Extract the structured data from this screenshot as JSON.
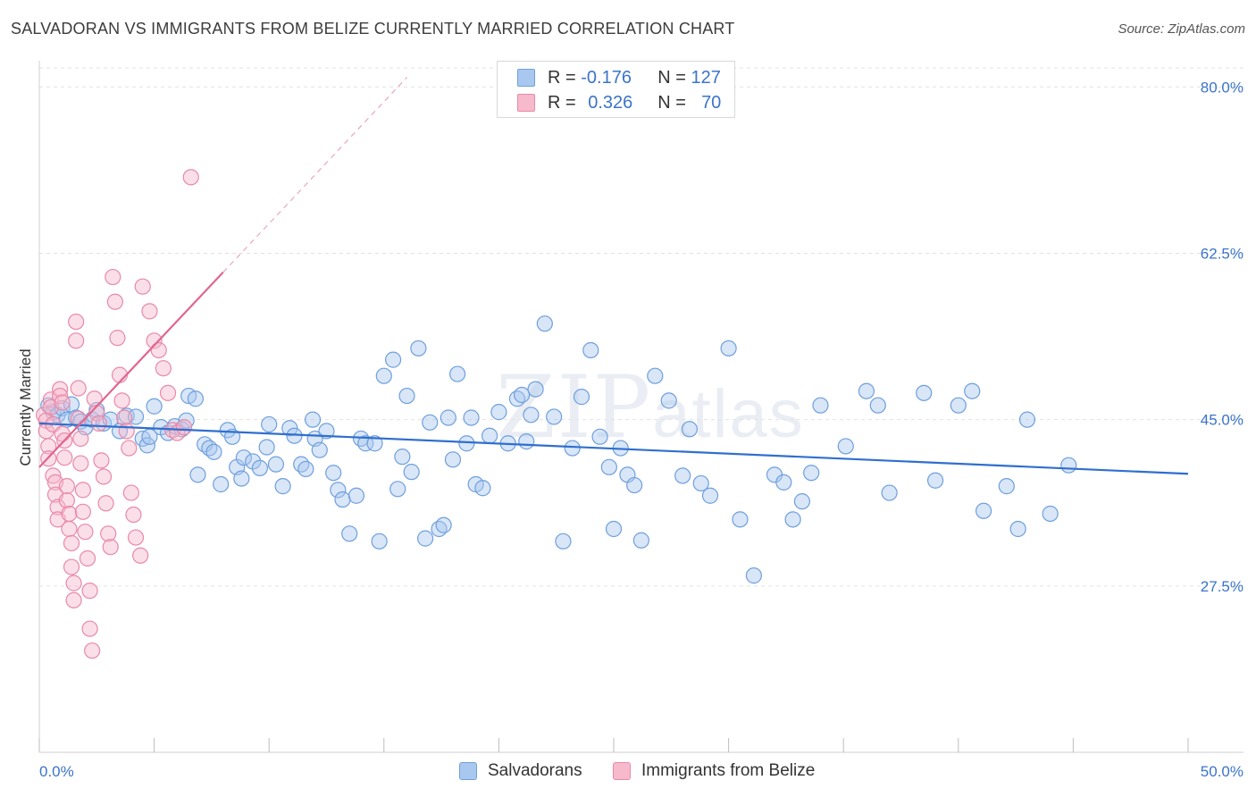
{
  "title": "SALVADORAN VS IMMIGRANTS FROM BELIZE CURRENTLY MARRIED CORRELATION CHART",
  "source": "Source: ZipAtlas.com",
  "watermark": {
    "zip": "ZIP",
    "atlas": "atlas"
  },
  "legend": {
    "rows": [
      {
        "r_label": "R =",
        "r_value": "-0.176",
        "n_label": "N =",
        "n_value": "127",
        "color": "#a9c8f0",
        "border": "#6f9fdc"
      },
      {
        "r_label": "R =",
        "r_value": "0.326",
        "n_label": "N =",
        "n_value": "70",
        "color": "#f7b9cc",
        "border": "#e889a8"
      }
    ]
  },
  "bottom_legend": [
    {
      "label": "Salvadorans",
      "color": "#a9c8f0",
      "border": "#6f9fdc"
    },
    {
      "label": "Immigrants from Belize",
      "color": "#f7b9cc",
      "border": "#e889a8"
    }
  ],
  "chart_data": {
    "type": "scatter",
    "title": "SALVADORAN VS IMMIGRANTS FROM BELIZE CURRENTLY MARRIED CORRELATION CHART",
    "xlabel": "",
    "ylabel": "Currently Married",
    "xlim": [
      0,
      50
    ],
    "ylim": [
      10,
      82
    ],
    "x_tick_labels": [
      "0.0%",
      "50.0%"
    ],
    "y_ticks": [
      27.5,
      45.0,
      62.5,
      80.0
    ],
    "y_tick_labels": [
      "27.5%",
      "45.0%",
      "62.5%",
      "80.0%"
    ],
    "grid": true,
    "series": [
      {
        "name": "Salvadorans",
        "color": "#6f9fdc",
        "fill": "#a9c8f0",
        "trend": {
          "x": [
            0,
            50
          ],
          "y": [
            44.6,
            39.3
          ]
        },
        "points": [
          [
            0.4,
            46.5
          ],
          [
            0.6,
            45.8
          ],
          [
            0.8,
            45.5
          ],
          [
            1.0,
            46.2
          ],
          [
            1.2,
            45.0
          ],
          [
            1.4,
            46.6
          ],
          [
            1.6,
            45.2
          ],
          [
            1.8,
            44.8
          ],
          [
            2.0,
            44.2
          ],
          [
            2.3,
            45.0
          ],
          [
            2.5,
            46.0
          ],
          [
            2.8,
            44.6
          ],
          [
            3.1,
            45.0
          ],
          [
            3.5,
            43.8
          ],
          [
            3.8,
            45.4
          ],
          [
            4.2,
            45.3
          ],
          [
            4.5,
            43.0
          ],
          [
            4.7,
            42.3
          ],
          [
            4.8,
            43.2
          ],
          [
            5.0,
            46.4
          ],
          [
            5.3,
            44.2
          ],
          [
            5.6,
            43.6
          ],
          [
            5.9,
            44.3
          ],
          [
            6.2,
            44.0
          ],
          [
            6.4,
            44.9
          ],
          [
            6.5,
            47.5
          ],
          [
            6.8,
            47.2
          ],
          [
            6.9,
            39.2
          ],
          [
            7.2,
            42.4
          ],
          [
            7.4,
            42.0
          ],
          [
            7.6,
            41.6
          ],
          [
            7.9,
            38.2
          ],
          [
            8.2,
            43.9
          ],
          [
            8.4,
            43.2
          ],
          [
            8.6,
            40.0
          ],
          [
            8.8,
            38.8
          ],
          [
            8.9,
            41.0
          ],
          [
            9.3,
            40.6
          ],
          [
            9.6,
            39.9
          ],
          [
            9.9,
            42.1
          ],
          [
            10.0,
            44.5
          ],
          [
            10.3,
            40.3
          ],
          [
            10.6,
            38.0
          ],
          [
            10.9,
            44.1
          ],
          [
            11.1,
            43.3
          ],
          [
            11.4,
            40.3
          ],
          [
            11.6,
            39.8
          ],
          [
            11.9,
            45.0
          ],
          [
            12.0,
            43.0
          ],
          [
            12.2,
            41.8
          ],
          [
            12.5,
            43.8
          ],
          [
            12.8,
            39.4
          ],
          [
            13.0,
            37.6
          ],
          [
            13.2,
            36.6
          ],
          [
            13.5,
            33.0
          ],
          [
            13.8,
            37.0
          ],
          [
            14.0,
            43.0
          ],
          [
            14.2,
            42.5
          ],
          [
            14.6,
            42.5
          ],
          [
            14.8,
            32.2
          ],
          [
            15.0,
            49.6
          ],
          [
            15.4,
            51.3
          ],
          [
            15.6,
            37.7
          ],
          [
            15.8,
            41.1
          ],
          [
            16.0,
            47.5
          ],
          [
            16.2,
            39.5
          ],
          [
            16.5,
            52.5
          ],
          [
            16.8,
            32.5
          ],
          [
            17.0,
            44.7
          ],
          [
            17.4,
            33.5
          ],
          [
            17.6,
            33.9
          ],
          [
            17.8,
            45.2
          ],
          [
            18.0,
            40.8
          ],
          [
            18.2,
            49.8
          ],
          [
            18.6,
            42.5
          ],
          [
            18.8,
            45.2
          ],
          [
            19.0,
            38.2
          ],
          [
            19.3,
            37.8
          ],
          [
            19.6,
            43.3
          ],
          [
            20.0,
            45.8
          ],
          [
            20.4,
            42.5
          ],
          [
            20.8,
            47.2
          ],
          [
            21.0,
            47.6
          ],
          [
            21.2,
            42.7
          ],
          [
            21.4,
            45.5
          ],
          [
            21.6,
            48.2
          ],
          [
            22.0,
            55.1
          ],
          [
            22.4,
            45.3
          ],
          [
            22.8,
            32.2
          ],
          [
            23.2,
            42.0
          ],
          [
            23.6,
            47.4
          ],
          [
            24.0,
            52.3
          ],
          [
            24.4,
            43.2
          ],
          [
            24.8,
            40.0
          ],
          [
            25.0,
            33.5
          ],
          [
            25.3,
            42.0
          ],
          [
            25.6,
            39.2
          ],
          [
            25.9,
            38.1
          ],
          [
            26.2,
            32.3
          ],
          [
            26.8,
            49.6
          ],
          [
            27.4,
            47.0
          ],
          [
            28.0,
            39.1
          ],
          [
            28.3,
            44.0
          ],
          [
            28.8,
            38.3
          ],
          [
            29.2,
            37.0
          ],
          [
            30.0,
            52.5
          ],
          [
            30.5,
            34.5
          ],
          [
            31.1,
            28.6
          ],
          [
            32.0,
            39.2
          ],
          [
            32.4,
            38.4
          ],
          [
            32.8,
            34.5
          ],
          [
            33.2,
            36.4
          ],
          [
            33.6,
            39.4
          ],
          [
            34.0,
            46.5
          ],
          [
            35.1,
            42.2
          ],
          [
            36.0,
            48.0
          ],
          [
            36.5,
            46.5
          ],
          [
            37.0,
            37.3
          ],
          [
            38.5,
            47.8
          ],
          [
            39.0,
            38.6
          ],
          [
            40.0,
            46.5
          ],
          [
            40.6,
            48.0
          ],
          [
            41.1,
            35.4
          ],
          [
            42.1,
            38.0
          ],
          [
            42.6,
            33.5
          ],
          [
            43.0,
            45.0
          ],
          [
            44.0,
            35.1
          ],
          [
            44.8,
            40.2
          ]
        ]
      },
      {
        "name": "Immigrants from Belize",
        "color": "#e889a8",
        "fill": "#f7b9cc",
        "trend": {
          "x": [
            0,
            8
          ],
          "y": [
            40.0,
            60.5
          ]
        },
        "trend_extension": {
          "x": [
            8,
            16
          ],
          "y": [
            60.5,
            81.0
          ]
        },
        "points": [
          [
            0.2,
            45.5
          ],
          [
            0.3,
            44.9
          ],
          [
            0.3,
            43.8
          ],
          [
            0.4,
            42.2
          ],
          [
            0.4,
            40.9
          ],
          [
            0.5,
            47.1
          ],
          [
            0.5,
            46.3
          ],
          [
            0.6,
            44.5
          ],
          [
            0.6,
            39.1
          ],
          [
            0.7,
            38.4
          ],
          [
            0.7,
            37.1
          ],
          [
            0.8,
            35.8
          ],
          [
            0.8,
            34.5
          ],
          [
            0.9,
            48.2
          ],
          [
            0.9,
            47.5
          ],
          [
            1.0,
            46.8
          ],
          [
            1.0,
            43.5
          ],
          [
            1.1,
            42.8
          ],
          [
            1.1,
            41.0
          ],
          [
            1.2,
            38.0
          ],
          [
            1.2,
            36.5
          ],
          [
            1.3,
            35.1
          ],
          [
            1.3,
            33.5
          ],
          [
            1.4,
            32.0
          ],
          [
            1.4,
            29.5
          ],
          [
            1.5,
            27.8
          ],
          [
            1.5,
            26.0
          ],
          [
            1.6,
            55.3
          ],
          [
            1.6,
            53.3
          ],
          [
            1.7,
            48.3
          ],
          [
            1.7,
            45.1
          ],
          [
            1.8,
            43.0
          ],
          [
            1.8,
            40.4
          ],
          [
            1.9,
            37.6
          ],
          [
            1.9,
            35.3
          ],
          [
            2.0,
            33.2
          ],
          [
            2.1,
            30.4
          ],
          [
            2.2,
            27.0
          ],
          [
            2.2,
            23.0
          ],
          [
            2.3,
            20.7
          ],
          [
            2.4,
            47.2
          ],
          [
            2.5,
            45.7
          ],
          [
            2.6,
            44.6
          ],
          [
            2.7,
            40.7
          ],
          [
            2.8,
            39.0
          ],
          [
            2.9,
            36.2
          ],
          [
            3.0,
            33.0
          ],
          [
            3.1,
            31.6
          ],
          [
            3.2,
            60.0
          ],
          [
            3.3,
            57.4
          ],
          [
            3.4,
            53.6
          ],
          [
            3.5,
            49.7
          ],
          [
            3.6,
            47.0
          ],
          [
            3.7,
            45.2
          ],
          [
            3.8,
            43.8
          ],
          [
            3.9,
            42.0
          ],
          [
            4.0,
            37.3
          ],
          [
            4.1,
            35.0
          ],
          [
            4.2,
            32.6
          ],
          [
            4.4,
            30.7
          ],
          [
            4.5,
            59.0
          ],
          [
            4.8,
            56.4
          ],
          [
            5.0,
            53.3
          ],
          [
            5.2,
            52.3
          ],
          [
            5.4,
            50.4
          ],
          [
            5.6,
            47.8
          ],
          [
            5.8,
            43.9
          ],
          [
            6.0,
            43.6
          ],
          [
            6.3,
            44.2
          ],
          [
            6.6,
            70.5
          ]
        ]
      }
    ]
  }
}
